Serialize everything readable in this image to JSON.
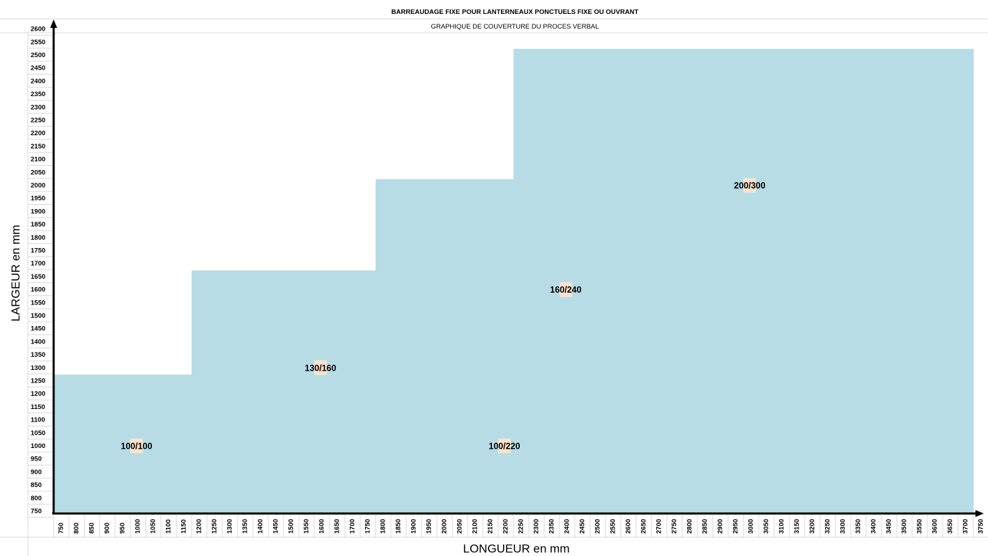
{
  "chart_data": {
    "type": "area",
    "title": "BARREAUDAGE FIXE POUR LANTERNEAUX PONCTUELS FIXE OU OUVRANT",
    "subtitle": "GRAPHIQUE DE COUVERTURE DU PROCES VERBAL",
    "xlabel": "LONGUEUR en mm",
    "ylabel": "LARGEUR en mm",
    "xlim": [
      750,
      3750
    ],
    "ylim": [
      750,
      2600
    ],
    "x_ticks": [
      750,
      800,
      850,
      900,
      950,
      1000,
      1050,
      1100,
      1150,
      1200,
      1250,
      1300,
      1350,
      1400,
      1450,
      1500,
      1550,
      1600,
      1650,
      1700,
      1750,
      1800,
      1850,
      1900,
      1950,
      2000,
      2050,
      2100,
      2150,
      2200,
      2250,
      2300,
      2350,
      2400,
      2450,
      2500,
      2550,
      2600,
      2650,
      2700,
      2750,
      2800,
      2850,
      2900,
      2950,
      3000,
      3050,
      3100,
      3150,
      3200,
      3250,
      3300,
      3350,
      3400,
      3450,
      3500,
      3550,
      3600,
      3650,
      3700,
      3750
    ],
    "y_ticks": [
      750,
      800,
      850,
      900,
      950,
      1000,
      1050,
      1100,
      1150,
      1200,
      1250,
      1300,
      1350,
      1400,
      1450,
      1500,
      1550,
      1600,
      1650,
      1700,
      1750,
      1800,
      1850,
      1900,
      1950,
      2000,
      2050,
      2100,
      2150,
      2200,
      2250,
      2300,
      2350,
      2400,
      2450,
      2500,
      2550,
      2600
    ],
    "fill_color": "#b7dce6",
    "label_bg_color": "#fbe3d0",
    "coverage_blocks": [
      {
        "x": [
          750,
          1200
        ],
        "y": [
          750,
          1250
        ]
      },
      {
        "x": [
          1200,
          1300
        ],
        "y": [
          750,
          1650
        ]
      },
      {
        "x": [
          1300,
          1650
        ],
        "y": [
          950,
          1650
        ]
      },
      {
        "x": [
          1650,
          1800
        ],
        "y": [
          750,
          1650
        ]
      },
      {
        "x": [
          1800,
          2250
        ],
        "y": [
          750,
          2000
        ]
      },
      {
        "x": [
          2250,
          2800
        ],
        "y": [
          750,
          2500
        ]
      },
      {
        "x": [
          2800,
          3050
        ],
        "y": [
          1150,
          2500
        ]
      },
      {
        "x": [
          3050,
          3750
        ],
        "y": [
          1500,
          2500
        ]
      }
    ],
    "zones": [
      {
        "label": "100/100",
        "x": 1000,
        "y": 1000
      },
      {
        "label": "130/160",
        "x": 1600,
        "y": 1300
      },
      {
        "label": "100/220",
        "x": 2200,
        "y": 1000
      },
      {
        "label": "160/240",
        "x": 2400,
        "y": 1600
      },
      {
        "label": "200/300",
        "x": 3000,
        "y": 2000
      }
    ]
  }
}
